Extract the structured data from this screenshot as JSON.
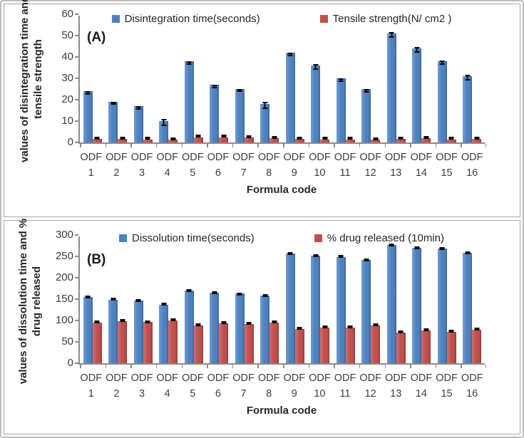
{
  "chart_data": [
    {
      "type": "bar",
      "panel_label": "(A)",
      "ylabel_line1": "values of disintegration time and",
      "ylabel_line2": "tensile strength",
      "xlabel": "Formula code",
      "ymax": 60,
      "yticks": [
        0,
        10,
        20,
        30,
        40,
        50,
        60
      ],
      "legend_position": "top-center",
      "grid": "off",
      "categories": [
        "ODF 1",
        "ODF 2",
        "ODF 3",
        "ODF 4",
        "ODF 5",
        "ODF 6",
        "ODF 7",
        "ODF 8",
        "ODF 9",
        "ODF 10",
        "ODF 11",
        "ODF 12",
        "ODF 13",
        "ODF 14",
        "ODF 15",
        "ODF 16"
      ],
      "series": [
        {
          "name": "Disintegration time(seconds)",
          "color": "#4f81bd",
          "values": [
            24,
            19,
            17,
            10,
            38,
            27,
            25,
            18,
            42,
            36,
            30,
            25,
            51,
            44,
            38,
            31
          ],
          "errors": [
            1.5,
            1.2,
            1.5,
            2.2,
            1.5,
            1.5,
            1.3,
            2.3,
            1.5,
            2.0,
            1.5,
            1.5,
            2.0,
            2.0,
            1.8,
            2.0
          ]
        },
        {
          "name": "Tensile strength(N/ cm2 )",
          "color": "#c0504d",
          "values": [
            1.8,
            1.8,
            1.5,
            1.2,
            2.5,
            2.5,
            2.2,
            2.0,
            1.8,
            1.5,
            1.5,
            1.2,
            1.8,
            2.0,
            1.5,
            1.8
          ],
          "errors": [
            0.3,
            0.3,
            0.3,
            0.3,
            0.3,
            0.3,
            0.3,
            0.3,
            0.3,
            0.3,
            0.3,
            0.3,
            0.3,
            0.3,
            0.3,
            0.3
          ]
        }
      ]
    },
    {
      "type": "bar",
      "panel_label": "(B)",
      "ylabel_line1": "values of dissolution time and %",
      "ylabel_line2": "drug released",
      "xlabel": "Formula code",
      "ymax": 300,
      "yticks": [
        0,
        50,
        100,
        150,
        200,
        250,
        300
      ],
      "legend_position": "top-center",
      "grid": "off",
      "categories": [
        "ODF 1",
        "ODF 2",
        "ODF 3",
        "ODF 4",
        "ODF 5",
        "ODF 6",
        "ODF 7",
        "ODF 8",
        "ODF 9",
        "ODF 10",
        "ODF 11",
        "ODF 12",
        "ODF 13",
        "ODF 14",
        "ODF 15",
        "ODF 16"
      ],
      "series": [
        {
          "name": "Dissolution time(seconds)",
          "color": "#4f81bd",
          "values": [
            155,
            148,
            147,
            137,
            170,
            165,
            163,
            158,
            257,
            251,
            249,
            242,
            277,
            270,
            268,
            258
          ],
          "errors": [
            3,
            2,
            3,
            2,
            3,
            3,
            4,
            3,
            3,
            2,
            3,
            3,
            3,
            4,
            3,
            3
          ]
        },
        {
          "name": "% drug released (10min)",
          "color": "#c0504d",
          "values": [
            95,
            98,
            96,
            100,
            89,
            93,
            92,
            95,
            80,
            84,
            83,
            89,
            72,
            77,
            73,
            78
          ],
          "errors": [
            2,
            2,
            2,
            2,
            2,
            2,
            2,
            2,
            2,
            2,
            2,
            2,
            2,
            2,
            2,
            2
          ]
        }
      ]
    }
  ]
}
